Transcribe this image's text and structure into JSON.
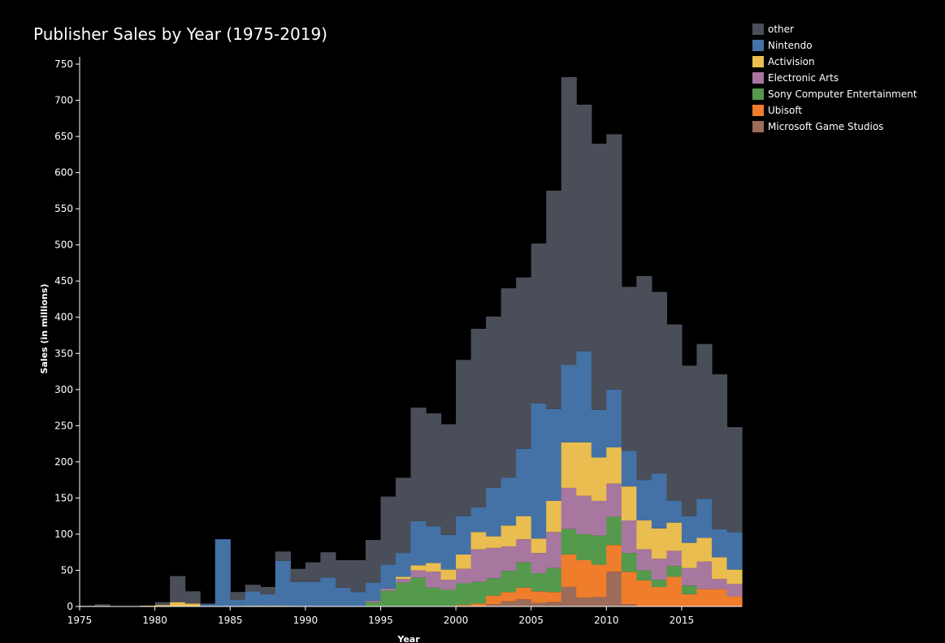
{
  "chart_data": {
    "type": "bar",
    "stacked": true,
    "title": "Publisher Sales by Year (1975-2019)",
    "xlabel": "Year",
    "ylabel": "Sales (in millions)",
    "xlim": [
      1975,
      2019
    ],
    "ylim": [
      0,
      770
    ],
    "x_ticks": [
      1975,
      1980,
      1985,
      1990,
      1995,
      2000,
      2005,
      2010,
      2015
    ],
    "y_ticks": [
      0,
      50,
      100,
      150,
      200,
      250,
      300,
      350,
      400,
      450,
      500,
      550,
      600,
      650,
      700,
      750
    ],
    "grid": false,
    "legend_position": "top-right",
    "categories": [
      1976,
      1977,
      1978,
      1979,
      1980,
      1981,
      1982,
      1983,
      1984,
      1985,
      1986,
      1987,
      1988,
      1989,
      1990,
      1991,
      1992,
      1993,
      1994,
      1995,
      1996,
      1997,
      1998,
      1999,
      2000,
      2001,
      2002,
      2003,
      2004,
      2005,
      2006,
      2007,
      2008,
      2009,
      2010,
      2011,
      2012,
      2013,
      2014,
      2015,
      2016,
      2017,
      2018,
      2019
    ],
    "series": [
      {
        "name": "Microsoft Game Studios",
        "color": "#9c6b5a",
        "values": [
          0,
          0,
          0,
          0,
          0,
          0,
          0,
          0,
          0,
          0,
          0,
          0,
          0,
          0,
          0,
          0,
          0,
          0,
          0,
          0,
          0,
          0,
          0,
          0,
          0,
          0,
          0,
          3,
          7,
          10,
          5,
          6,
          27,
          12,
          13,
          48,
          3,
          0,
          0,
          0,
          0,
          0,
          0,
          0
        ]
      },
      {
        "name": "Ubisoft",
        "color": "#ef7d2c",
        "values": [
          0,
          0,
          0,
          0,
          0,
          0,
          0,
          0,
          0,
          0,
          0,
          0,
          0,
          0,
          0,
          0,
          0,
          0,
          0,
          0,
          0,
          0,
          0,
          0,
          0,
          2,
          4,
          12,
          13,
          16,
          16,
          14,
          45,
          52,
          45,
          37,
          45,
          36,
          27,
          41,
          17,
          24,
          24,
          14
        ]
      },
      {
        "name": "Sony Computer Entertainment",
        "color": "#559a4c",
        "values": [
          0,
          0,
          0,
          0,
          0,
          0,
          0,
          0,
          0,
          0,
          0,
          0,
          0,
          0,
          0,
          0,
          0,
          0,
          0,
          6,
          22,
          33,
          40,
          26,
          23,
          30,
          30,
          24,
          29,
          35,
          25,
          33,
          35,
          36,
          40,
          39,
          26,
          14,
          10,
          15,
          12,
          0,
          0,
          0
        ]
      },
      {
        "name": "Electronic Arts",
        "color": "#a8779f",
        "values": [
          0,
          0,
          0,
          0,
          0,
          0,
          0,
          0,
          0,
          0,
          0,
          0,
          0,
          0,
          0,
          0,
          0,
          0,
          0,
          2,
          3,
          5,
          10,
          22,
          14,
          20,
          45,
          42,
          34,
          32,
          28,
          50,
          57,
          53,
          48,
          46,
          45,
          29,
          29,
          21,
          24,
          38,
          14,
          17
        ]
      },
      {
        "name": "Activision",
        "color": "#e9bd4f",
        "values": [
          0,
          0,
          0,
          0,
          1,
          2,
          6,
          4,
          0,
          0,
          0,
          1,
          1,
          1,
          0,
          0,
          0,
          0,
          0,
          0,
          0,
          3,
          7,
          12,
          14,
          20,
          24,
          16,
          29,
          32,
          20,
          43,
          63,
          74,
          60,
          50,
          47,
          40,
          42,
          39,
          35,
          33,
          30,
          20
        ]
      },
      {
        "name": "Nintendo",
        "color": "#4472a6",
        "values": [
          0,
          0,
          0,
          0,
          0,
          0,
          0,
          0,
          3,
          93,
          9,
          20,
          16,
          62,
          34,
          34,
          40,
          26,
          20,
          25,
          33,
          33,
          61,
          51,
          48,
          53,
          34,
          67,
          66,
          93,
          187,
          127,
          107,
          126,
          66,
          80,
          49,
          56,
          76,
          30,
          37,
          54,
          39,
          52
        ]
      },
      {
        "name": "other",
        "color": "#4a4e58",
        "values": [
          1,
          3,
          0,
          0,
          0,
          4,
          36,
          17,
          1,
          0,
          11,
          9,
          10,
          13,
          18,
          27,
          35,
          38,
          44,
          59,
          94,
          104,
          157,
          156,
          153,
          216,
          247,
          237,
          262,
          237,
          221,
          302,
          398,
          341,
          368,
          353,
          227,
          282,
          251,
          244,
          208,
          214,
          214,
          145
        ]
      }
    ]
  }
}
